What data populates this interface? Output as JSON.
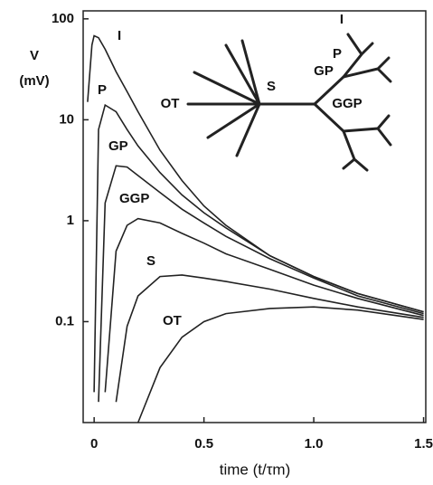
{
  "chart_data": {
    "type": "line",
    "log_y": true,
    "ylabel": [
      "V",
      "(mV)"
    ],
    "xlabel": "time (t/τm)",
    "x": [
      -0.03,
      -0.01,
      0,
      0.02,
      0.05,
      0.1,
      0.15,
      0.2,
      0.3,
      0.4,
      0.5,
      0.6,
      0.8,
      1.0,
      1.2,
      1.5
    ],
    "series": [
      {
        "name": "I",
        "color": "#222222",
        "values": [
          15,
          55,
          68,
          65,
          50,
          30,
          19,
          12,
          5,
          2.5,
          1.4,
          0.9,
          0.45,
          0.28,
          0.19,
          0.125
        ]
      },
      {
        "name": "P",
        "color": "#222222",
        "values": [
          null,
          null,
          0.02,
          8,
          14,
          12,
          8,
          5.5,
          3,
          1.8,
          1.2,
          0.85,
          0.45,
          0.28,
          0.19,
          0.125
        ]
      },
      {
        "name": "GP",
        "color": "#222222",
        "values": [
          null,
          null,
          null,
          0.016,
          1.5,
          3.5,
          3.4,
          2.8,
          1.9,
          1.3,
          0.95,
          0.7,
          0.42,
          0.27,
          0.18,
          0.12
        ]
      },
      {
        "name": "GGP",
        "color": "#222222",
        "values": [
          null,
          null,
          null,
          null,
          0.02,
          0.5,
          0.9,
          1.05,
          0.95,
          0.75,
          0.6,
          0.47,
          0.33,
          0.23,
          0.17,
          0.115
        ]
      },
      {
        "name": "S",
        "color": "#222222",
        "values": [
          null,
          null,
          null,
          null,
          null,
          0.016,
          0.09,
          0.18,
          0.28,
          0.29,
          0.27,
          0.25,
          0.21,
          0.17,
          0.14,
          0.11
        ]
      },
      {
        "name": "OT",
        "color": "#222222",
        "values": [
          null,
          null,
          null,
          null,
          null,
          null,
          null,
          0.01,
          0.035,
          0.07,
          0.1,
          0.12,
          0.135,
          0.14,
          0.13,
          0.105
        ]
      }
    ],
    "xlim": [
      -0.05,
      1.51
    ],
    "ylim": [
      0.01,
      120
    ],
    "xticks": [
      0,
      0.5,
      {
        "value": 1,
        "label": "1.0"
      },
      1.5
    ],
    "yticks": [
      100,
      10,
      1,
      0.1
    ]
  }
}
